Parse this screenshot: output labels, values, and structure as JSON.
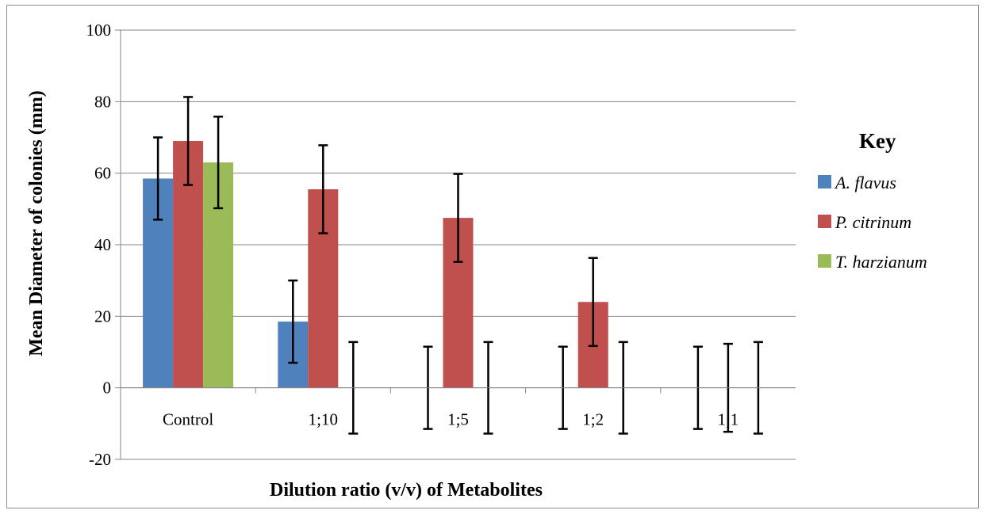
{
  "chart_data": {
    "type": "bar",
    "ylabel": "Mean Diameter of colonies (mm)",
    "xlabel": "Dilution ratio (v/v) of Metabolites",
    "ylim": [
      -20,
      100
    ],
    "yticks": [
      -20,
      0,
      20,
      40,
      60,
      80,
      100
    ],
    "grid": true,
    "categories": [
      "Control",
      "1;10",
      "1;5",
      "1;2",
      "1;1"
    ],
    "legend": {
      "title": "Key",
      "placement": "right"
    },
    "series": [
      {
        "name": "A. flavus",
        "color": "#4f81bd",
        "values": [
          58.5,
          18.5,
          0,
          0,
          0
        ],
        "errors": [
          11.5,
          11.5,
          11.5,
          11.5,
          11.5
        ]
      },
      {
        "name": "P. citrinum",
        "color": "#c0504d",
        "values": [
          69,
          55.5,
          47.5,
          24,
          0
        ],
        "errors": [
          12.3,
          12.3,
          12.3,
          12.3,
          12.3
        ]
      },
      {
        "name": "T. harzianum",
        "color": "#9bbb59",
        "values": [
          63,
          0,
          0,
          0,
          0
        ],
        "errors": [
          12.8,
          12.8,
          12.8,
          12.8,
          12.8
        ]
      }
    ]
  }
}
